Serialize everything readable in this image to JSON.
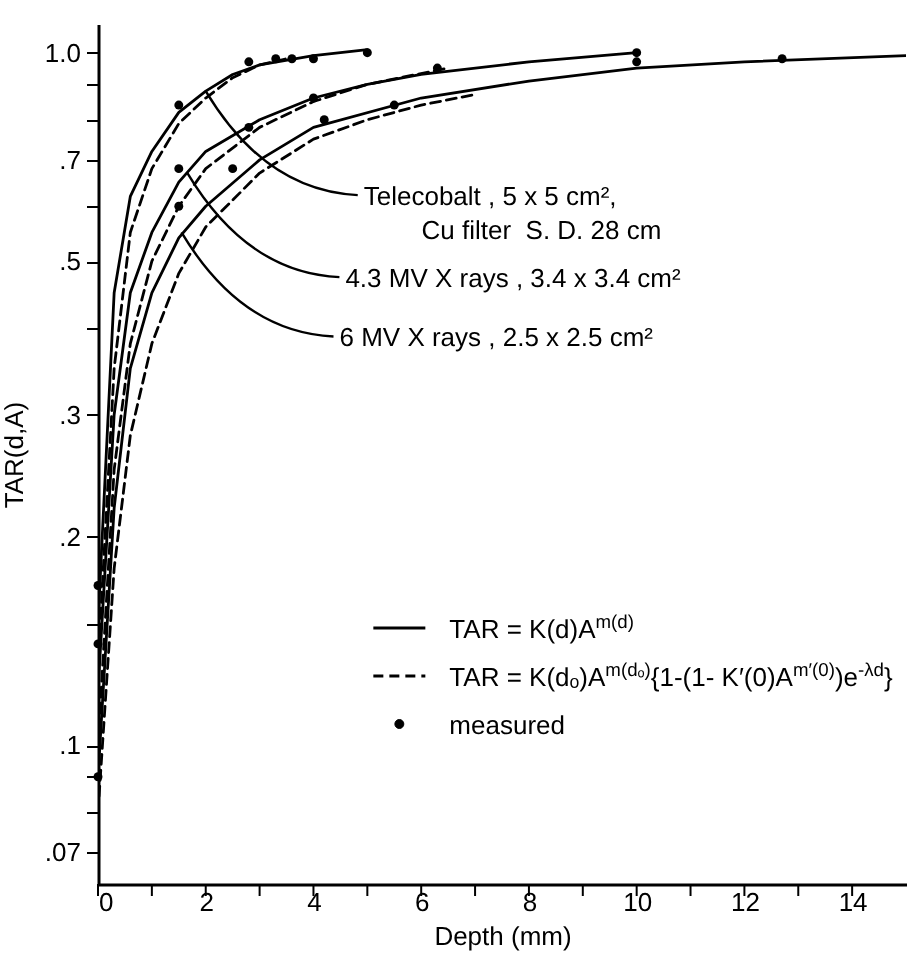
{
  "chart_data": {
    "type": "line",
    "xlabel": "Depth  (mm)",
    "ylabel": "TAR(d,A)",
    "log": "y",
    "legend": "bottom right",
    "xlim": [
      0,
      15
    ],
    "ylim": [
      0.063,
      1.1
    ],
    "xticks": [
      0,
      {
        "value": 1,
        "label": null
      },
      2,
      {
        "value": 3,
        "label": null
      },
      4,
      {
        "value": 5,
        "label": null
      },
      6,
      {
        "value": 7,
        "label": null
      },
      8,
      {
        "value": 9,
        "label": null
      },
      10,
      {
        "value": 11,
        "label": null
      },
      12,
      {
        "value": 13,
        "label": null
      },
      14
    ],
    "yticks": [
      {
        "value": 0.07,
        "label": ".07"
      },
      {
        "value": 0.08,
        "label": null
      },
      {
        "value": 0.09,
        "label": null
      },
      {
        "value": 0.1,
        "label": ".1"
      },
      {
        "value": 0.15,
        "label": null
      },
      {
        "value": 0.2,
        "label": ".2"
      },
      {
        "value": 0.3,
        "label": ".3"
      },
      {
        "value": 0.4,
        "label": null
      },
      {
        "value": 0.5,
        "label": ".5"
      },
      {
        "value": 0.6,
        "label": null
      },
      {
        "value": 0.7,
        "label": ".7"
      },
      {
        "value": 0.8,
        "label": null
      },
      {
        "value": 0.9,
        "label": null
      },
      {
        "value": 1.0,
        "label": "1.0"
      }
    ],
    "series": [
      {
        "name": "TAR = K(d)A$^{m(d)}$",
        "type": "line",
        "line_style": "solid",
        "color": "#000000",
        "x": [
          0,
          0.3,
          0.6,
          1,
          1.5,
          2,
          2.5,
          3,
          4,
          5
        ],
        "values": [
          0.15,
          0.45,
          0.62,
          0.72,
          0.82,
          0.88,
          0.93,
          0.96,
          0.99,
          1.01
        ]
      },
      {
        "name": "TAR = K(dₒ)A$^{m(dₒ)}${1-(1- K′(0)A$^{m′(0)}$)e$^{-λd}$}",
        "type": "line",
        "line_style": "dashed",
        "color": "#000000",
        "x": [
          0,
          0.3,
          0.6,
          1,
          1.5,
          2,
          2.5,
          3,
          3.5
        ],
        "values": [
          0.13,
          0.35,
          0.55,
          0.68,
          0.79,
          0.86,
          0.92,
          0.96,
          0.98
        ]
      },
      {
        "type": "line",
        "line_style": "solid",
        "color": "#000000",
        "x": [
          0,
          0.3,
          0.6,
          1,
          1.5,
          2,
          3,
          4,
          5,
          6,
          8,
          10
        ],
        "values": [
          0.12,
          0.3,
          0.45,
          0.55,
          0.65,
          0.72,
          0.8,
          0.86,
          0.9,
          0.93,
          0.97,
          1.0
        ]
      },
      {
        "type": "line",
        "line_style": "dashed",
        "color": "#000000",
        "x": [
          0,
          0.3,
          0.6,
          1,
          1.5,
          2,
          3,
          4,
          5,
          6.5
        ],
        "values": [
          0.1,
          0.25,
          0.38,
          0.5,
          0.6,
          0.68,
          0.78,
          0.85,
          0.9,
          0.95
        ]
      },
      {
        "type": "line",
        "line_style": "solid",
        "color": "#000000",
        "x": [
          0,
          0.3,
          0.6,
          1,
          1.5,
          2,
          3,
          4,
          6,
          8,
          10,
          12,
          15
        ],
        "values": [
          0.09,
          0.22,
          0.35,
          0.45,
          0.54,
          0.6,
          0.7,
          0.78,
          0.86,
          0.91,
          0.95,
          0.97,
          0.99
        ]
      },
      {
        "type": "line",
        "line_style": "dashed",
        "color": "#000000",
        "x": [
          0,
          0.3,
          0.6,
          1,
          1.5,
          2,
          3,
          4,
          5,
          6,
          7
        ],
        "values": [
          0.08,
          0.18,
          0.28,
          0.38,
          0.48,
          0.56,
          0.67,
          0.75,
          0.8,
          0.84,
          0.87
        ]
      },
      {
        "name": "measured",
        "type": "scatter",
        "marker": "circle",
        "color": "#000000",
        "x": [
          0,
          0,
          0,
          1.5,
          2.8,
          3.3,
          3.6,
          4,
          5,
          1.5,
          2.8,
          4,
          6.3,
          10,
          1.5,
          2.5,
          4.2,
          5.5,
          10,
          12.7
        ],
        "values": [
          0.17,
          0.14,
          0.09,
          0.84,
          0.97,
          0.98,
          0.98,
          0.98,
          1.0,
          0.68,
          0.78,
          0.86,
          0.95,
          1.0,
          0.6,
          0.68,
          0.8,
          0.84,
          0.97,
          0.98
        ]
      }
    ],
    "annotations": [
      {
        "text": "Telecobalt , 5 x 5 cm²,\n        Cu filter  S. D. 28 cm",
        "x": 2,
        "y": 0.88
      },
      {
        "text": "4.3 MV X rays , 3.4 x 3.4 cm²",
        "x": 1.66,
        "y": 0.67
      },
      {
        "text": "6 MV X rays , 2.5 x 2.5 cm²",
        "x": 1.55,
        "y": 0.55
      }
    ]
  }
}
